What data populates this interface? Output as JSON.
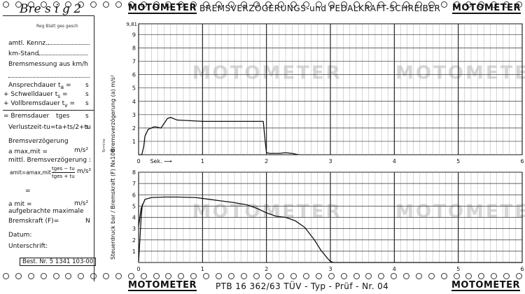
{
  "header": {
    "handwritten": "Bre s i g 2",
    "brand_left": "MOTOMETER",
    "title": "BREMSVERZÖGERUNGS-und PEDALKRAFT-SCHREIBER",
    "brand_right": "MOTOMETER",
    "small_note": "Reg Blatt ges gesch"
  },
  "form": {
    "amtl_kennz": "amtl. Kennz.",
    "km_stand": "km-Stand",
    "bremsmessung": "Bremsmessung aus km/h",
    "ansprechdauer": "Ansprechdauer",
    "ansprechdauer_sym": "t",
    "ansprechdauer_sub": "a",
    "schwelldauer": "+ Schwelldauer",
    "schwelldauer_sym": "t",
    "schwelldauer_sub": "s",
    "vollbremsdauer": "+ Vollbremsdauer",
    "vollbremsdauer_sym": "t",
    "vollbremsdauer_sub": "v",
    "bremsdauer": "= Bremsdauer",
    "bremsdauer_sym": "tges",
    "verlustzeit": "Verlustzeit-",
    "verlustzeit_formula": "tu=ta+ts/2+tu",
    "unit_s": "s",
    "bremsverzoegerung": "Bremsverzögerung",
    "a_max_mit": "a max,mit =",
    "unit_ms2": "m/s²",
    "mittl": "mittl. Bremsverzögerung :",
    "a_mit_formula": "amit=amax,mit ·",
    "frac_num": "tges − tu",
    "frac_den": "tges + tu",
    "equals": "=",
    "a_mit": "a mit =",
    "aufgebrachte": "aufgebrachte maximale",
    "bremskraft": "Bremskraft (F)=",
    "unit_n": "N",
    "datum": "Datum:",
    "unterschrift": "Unterschrift:",
    "best_nr": "Best. Nr.  5 1341 103-00",
    "side_marker": "Termine"
  },
  "footer": {
    "brand_left": "MOTOMETER",
    "text": "PTB 16 362/63     TÜV - Typ - Prüf - Nr. 04",
    "brand_right": "MOTOMETER"
  },
  "chart_data": [
    {
      "type": "line",
      "ylabel": "Bremsverzögerung (a)  m/s²",
      "ylim": [
        0,
        9.81
      ],
      "yticks": [
        "1",
        "2",
        "3",
        "4",
        "5",
        "6",
        "7",
        "8",
        "9"
      ],
      "ytop_label": "9,81",
      "xlim": [
        0,
        6
      ],
      "xticks": [
        "0",
        "1",
        "2",
        "3",
        "4",
        "5",
        "6"
      ],
      "xlabel": "Sek.",
      "watermark": "MOTOMETER",
      "series": [
        {
          "x": [
            0.0,
            0.05,
            0.08,
            0.1,
            0.15,
            0.25,
            0.35,
            0.45,
            0.5,
            0.6,
            0.8,
            1.0,
            1.2,
            1.5,
            1.8,
            1.95,
            1.98,
            2.0,
            2.05,
            2.2,
            2.3,
            2.4,
            2.5
          ],
          "y": [
            0.0,
            0.0,
            0.6,
            1.4,
            1.9,
            2.1,
            2.0,
            2.7,
            2.8,
            2.6,
            2.55,
            2.5,
            2.5,
            2.5,
            2.5,
            2.5,
            1.0,
            0.15,
            0.1,
            0.1,
            0.15,
            0.1,
            0.0
          ]
        }
      ]
    },
    {
      "type": "line",
      "ylabel": "Steuerdruck bar / Bremskraft (F)  Nx100",
      "ylim": [
        0,
        8
      ],
      "yticks": [
        "1",
        "2",
        "3",
        "4",
        "5",
        "6",
        "7",
        "8"
      ],
      "xlim": [
        0,
        6
      ],
      "xticks": [
        "0",
        "1",
        "2",
        "3",
        "4",
        "5",
        "6"
      ],
      "watermark": "MOTOMETER",
      "series": [
        {
          "x": [
            0.0,
            0.04,
            0.1,
            0.2,
            0.4,
            0.6,
            0.9,
            1.1,
            1.3,
            1.5,
            1.7,
            1.85,
            2.0,
            2.15,
            2.3,
            2.45,
            2.6,
            2.75,
            2.85,
            2.95,
            3.0,
            3.05,
            3.2,
            3.6,
            4.5,
            5.5,
            6.0
          ],
          "y": [
            3.2,
            4.8,
            5.6,
            5.75,
            5.8,
            5.8,
            5.75,
            5.6,
            5.45,
            5.3,
            5.1,
            4.8,
            4.4,
            4.1,
            4.0,
            3.7,
            3.1,
            2.0,
            1.1,
            0.4,
            0.1,
            0.0,
            0.0,
            0.0,
            0.0,
            0.0,
            0.0
          ]
        },
        {
          "x": [
            0.0,
            0.02,
            0.04,
            0.06
          ],
          "y": [
            0.1,
            2.0,
            4.0,
            5.2
          ]
        }
      ]
    }
  ]
}
